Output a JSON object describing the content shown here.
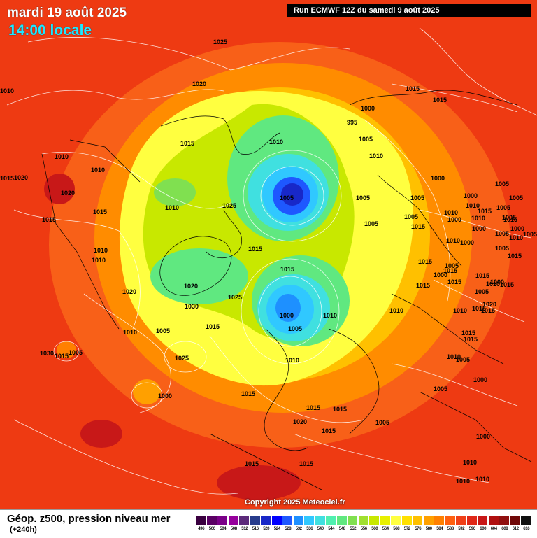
{
  "header": {
    "date_title": "mardi 19 août 2025",
    "time_title": "14:00 locale",
    "run_info": "Run ECMWF 12Z du samedi 9 août 2025"
  },
  "copyright": "Copyright 2025 Meteociel.fr",
  "footer": {
    "title": "Géop. z500, pression niveau mer",
    "subtitle": "(+240h)"
  },
  "scale": {
    "labels": [
      "496",
      "500",
      "504",
      "508",
      "512",
      "516",
      "520",
      "524",
      "528",
      "532",
      "536",
      "540",
      "544",
      "548",
      "552",
      "556",
      "560",
      "564",
      "568",
      "572",
      "576",
      "580",
      "584",
      "588",
      "592",
      "596",
      "600",
      "604",
      "608",
      "612",
      "616"
    ],
    "colors": [
      "#3a0040",
      "#5a0064",
      "#7a0088",
      "#96009c",
      "#5c2a7a",
      "#283c8c",
      "#1828c8",
      "#0000ff",
      "#1e58ff",
      "#1e90ff",
      "#30c8ff",
      "#40e0e0",
      "#50f0b0",
      "#60e880",
      "#80e050",
      "#a0e030",
      "#c8e800",
      "#e8f000",
      "#ffff40",
      "#ffe000",
      "#ffc000",
      "#ffa000",
      "#ff8000",
      "#ff6010",
      "#f04018",
      "#e02818",
      "#c81818",
      "#b01010",
      "#901010",
      "#700808",
      "#101010"
    ]
  },
  "map": {
    "isobar_labels": [
      "1025",
      "1020",
      "1010",
      "1015",
      "1020",
      "1010",
      "1015",
      "1010",
      "1015",
      "1010",
      "1015",
      "1010",
      "1020",
      "1025",
      "1010",
      "1015",
      "1020",
      "1020",
      "1025",
      "1030",
      "1010",
      "1005",
      "1015",
      "1025",
      "1030",
      "1015",
      "1005",
      "1000",
      "1005",
      "1010",
      "1015",
      "1000",
      "1005",
      "1010",
      "1010",
      "1015",
      "1020",
      "1015",
      "1005",
      "1005",
      "1005",
      "1015",
      "1015",
      "1000",
      "1005",
      "1010",
      "1015",
      "1000",
      "1005",
      "1000",
      "1010",
      "1015",
      "1005",
      "995",
      "1005",
      "1010",
      "1005",
      "1005",
      "1015",
      "1010",
      "1015",
      "1015",
      "1000",
      "1010",
      "1005",
      "1010",
      "1000",
      "1015",
      "1000",
      "1005",
      "1005",
      "1000",
      "1010",
      "1015",
      "1020",
      "1015",
      "1005",
      "1000",
      "1015",
      "1015",
      "1005",
      "1015",
      "1010",
      "1000",
      "1005",
      "1015",
      "1015",
      "1010",
      "1015",
      "1015",
      "1010",
      "1000",
      "1005",
      "1015",
      "1005",
      "1015",
      "1015",
      "1010",
      "1000",
      "1010",
      "1010",
      "1010",
      "1015",
      "1015",
      "1010",
      "1005",
      "1000",
      "1005",
      "1015",
      "1020",
      "1015",
      "1010",
      "1015",
      "1015",
      "1015",
      "1010",
      "1015",
      "1005",
      "1005",
      "1010"
    ]
  }
}
